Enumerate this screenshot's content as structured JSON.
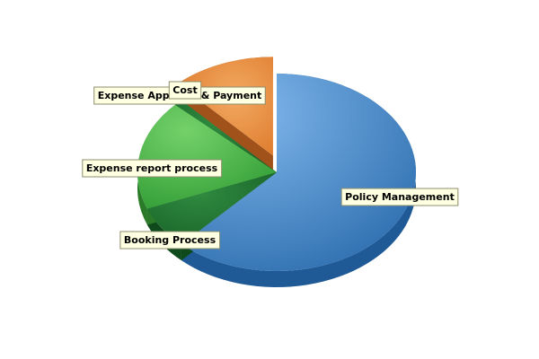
{
  "chart_data": {
    "type": "pie",
    "style": "3d-exploded",
    "categories": [
      "Policy Management",
      "Booking Process",
      "Expense report process",
      "Expense Approval & Payment",
      "Cost"
    ],
    "values": [
      62,
      7,
      18,
      1,
      12
    ],
    "unit": "percent",
    "exploded": [
      "Cost"
    ],
    "legend": "none",
    "title": "",
    "colors": {
      "Policy Management": "#4a86c8",
      "Booking Process": "#1f7a35",
      "Expense report process": "#4cb548",
      "Expense Approval & Payment": "#2e8f3a",
      "Cost": "#e07b2a"
    }
  }
}
